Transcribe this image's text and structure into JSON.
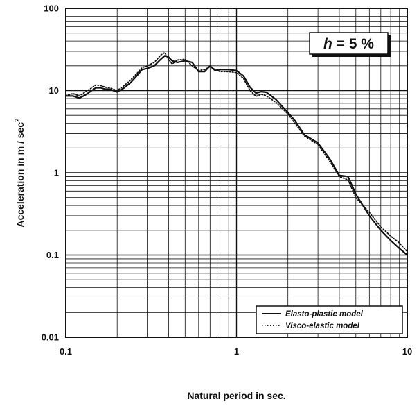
{
  "chart_data": {
    "type": "line",
    "x_scale": "log",
    "y_scale": "log",
    "xlim": [
      0.1,
      10
    ],
    "ylim": [
      0.01,
      100
    ],
    "grid": true,
    "legend_position": "bottom-right",
    "xlabel": "Natural period in sec.",
    "ylabel": "Acceleration in m / sec",
    "ylabel_superscript": "2",
    "x_tick_labels": [
      "0.1",
      "1",
      "10"
    ],
    "y_tick_labels": [
      "0.01",
      "0.1",
      "1",
      "10",
      "100"
    ],
    "annotation": {
      "symbol": "h",
      "text": " = 5 %"
    },
    "series": [
      {
        "name": "Elasto-plastic model",
        "style": "solid",
        "color": "#111111",
        "x": [
          0.1,
          0.11,
          0.12,
          0.13,
          0.14,
          0.15,
          0.16,
          0.17,
          0.18,
          0.2,
          0.22,
          0.24,
          0.26,
          0.28,
          0.3,
          0.33,
          0.36,
          0.38,
          0.4,
          0.42,
          0.45,
          0.5,
          0.55,
          0.6,
          0.65,
          0.7,
          0.75,
          0.8,
          0.9,
          1.0,
          1.1,
          1.2,
          1.3,
          1.4,
          1.5,
          1.7,
          2.0,
          2.2,
          2.5,
          3.0,
          3.5,
          4.0,
          4.5,
          5.0,
          6.0,
          7.0,
          8.0,
          9.0,
          10.0
        ],
        "values": [
          8.6,
          8.6,
          8.1,
          8.8,
          9.8,
          10.8,
          10.8,
          10.4,
          10.4,
          9.6,
          10.8,
          12.5,
          15.0,
          18.0,
          18.6,
          20.0,
          24.0,
          26.5,
          25.5,
          23.0,
          22.0,
          23.0,
          22.0,
          17.0,
          17.0,
          20.0,
          17.5,
          18.0,
          18.0,
          17.5,
          15.0,
          11.0,
          9.3,
          9.7,
          9.5,
          7.8,
          5.4,
          4.3,
          2.9,
          2.3,
          1.5,
          0.93,
          0.9,
          0.55,
          0.3,
          0.2,
          0.15,
          0.12,
          0.1
        ]
      },
      {
        "name": "Visco-elastic model",
        "style": "dotted",
        "color": "#111111",
        "x": [
          0.1,
          0.11,
          0.12,
          0.13,
          0.14,
          0.15,
          0.16,
          0.17,
          0.18,
          0.2,
          0.22,
          0.24,
          0.26,
          0.28,
          0.3,
          0.33,
          0.36,
          0.38,
          0.4,
          0.42,
          0.45,
          0.5,
          0.55,
          0.6,
          0.65,
          0.7,
          0.75,
          0.8,
          0.9,
          1.0,
          1.1,
          1.2,
          1.3,
          1.4,
          1.5,
          1.7,
          2.0,
          2.2,
          2.5,
          3.0,
          3.5,
          4.0,
          4.5,
          5.0,
          6.0,
          7.0,
          8.0,
          9.0,
          10.0
        ],
        "values": [
          8.6,
          9.2,
          8.6,
          9.6,
          10.6,
          11.7,
          11.5,
          11.0,
          10.8,
          10.0,
          11.5,
          13.5,
          16.0,
          19.0,
          20.0,
          22.0,
          27.0,
          29.0,
          24.0,
          21.0,
          23.5,
          24.0,
          20.0,
          17.5,
          18.0,
          19.5,
          18.0,
          17.0,
          17.0,
          16.5,
          14.0,
          10.0,
          8.5,
          9.0,
          8.6,
          7.2,
          5.2,
          4.0,
          2.8,
          2.2,
          1.4,
          0.9,
          0.82,
          0.5,
          0.33,
          0.22,
          0.17,
          0.14,
          0.11
        ]
      }
    ]
  }
}
